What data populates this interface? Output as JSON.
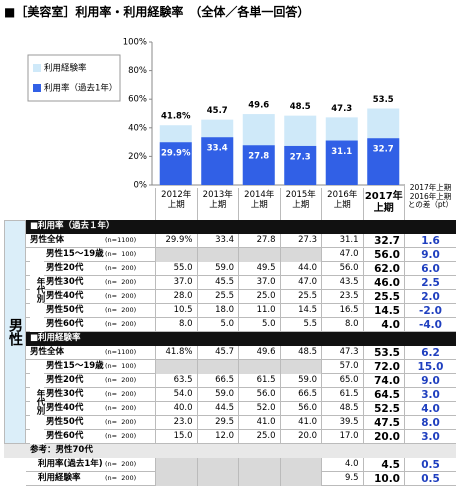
{
  "chart_data": {
    "type": "bar",
    "title": "■［美容室］利用率・利用経験率　（全体／各単一回答）",
    "categories": [
      "2012年\n上期",
      "2013年\n上期",
      "2014年\n上期",
      "2015年\n上期",
      "2016年\n上期",
      "2017年\n上期"
    ],
    "series": [
      {
        "name": "利用経験率",
        "color": "#cfe9f9",
        "values": [
          41.8,
          45.7,
          49.6,
          48.5,
          47.3,
          53.5
        ],
        "value_labels": [
          "41.8%",
          "45.7",
          "49.6",
          "48.5",
          "47.3",
          "53.5"
        ]
      },
      {
        "name": "利用率（過去1年）",
        "color": "#3160e6",
        "values": [
          29.9,
          33.4,
          27.8,
          27.3,
          31.1,
          32.7
        ],
        "value_labels": [
          "29.9%",
          "33.4",
          "27.8",
          "27.3",
          "31.1",
          "32.7"
        ]
      }
    ],
    "ylim": [
      0,
      100
    ],
    "yticks": [
      {
        "value": 0,
        "label": "0%"
      },
      {
        "value": 20,
        "label": "20%"
      },
      {
        "value": 40,
        "label": "40%"
      },
      {
        "value": 60,
        "label": "60%"
      },
      {
        "value": 80,
        "label": "80%"
      },
      {
        "value": 100,
        "label": "100%"
      }
    ],
    "grid": false
  },
  "table": {
    "diff_header": "2017年上期\n2016年上期\nとの差（pt）",
    "side_label": "男性",
    "age_label": "年代別",
    "sections": [
      {
        "title": "■利用率（過去１年）",
        "rows": [
          {
            "label": "男性全体",
            "n": "(n=1100)",
            "values": [
              "29.9%",
              "33.4",
              "27.8",
              "27.3",
              "31.1",
              "32.7"
            ],
            "diff": "1.6"
          },
          {
            "label": "男性15～19歳",
            "n": "(n=  100)",
            "values": [
              null,
              null,
              null,
              null,
              "47.0",
              "56.0"
            ],
            "diff": "9.0"
          },
          {
            "label": "男性20代",
            "n": "(n=  200)",
            "values": [
              "55.0",
              "59.0",
              "49.5",
              "44.0",
              "56.0",
              "62.0"
            ],
            "diff": "6.0"
          },
          {
            "label": "男性30代",
            "n": "(n=  200)",
            "values": [
              "37.0",
              "45.5",
              "37.0",
              "47.0",
              "43.5",
              "46.0"
            ],
            "diff": "2.5"
          },
          {
            "label": "男性40代",
            "n": "(n=  200)",
            "values": [
              "28.0",
              "25.5",
              "25.0",
              "25.5",
              "23.5",
              "25.5"
            ],
            "diff": "2.0"
          },
          {
            "label": "男性50代",
            "n": "(n=  200)",
            "values": [
              "10.5",
              "18.0",
              "11.0",
              "14.5",
              "16.5",
              "14.5"
            ],
            "diff": "-2.0"
          },
          {
            "label": "男性60代",
            "n": "(n=  200)",
            "values": [
              "8.0",
              "5.0",
              "5.0",
              "5.5",
              "8.0",
              "4.0"
            ],
            "diff": "-4.0"
          }
        ]
      },
      {
        "title": "■利用経験率",
        "rows": [
          {
            "label": "男性全体",
            "n": "(n=1100)",
            "values": [
              "41.8%",
              "45.7",
              "49.6",
              "48.5",
              "47.3",
              "53.5"
            ],
            "diff": "6.2"
          },
          {
            "label": "男性15～19歳",
            "n": "(n=  100)",
            "values": [
              null,
              null,
              null,
              null,
              "57.0",
              "72.0"
            ],
            "diff": "15.0"
          },
          {
            "label": "男性20代",
            "n": "(n=  200)",
            "values": [
              "63.5",
              "66.5",
              "61.5",
              "59.0",
              "65.0",
              "74.0"
            ],
            "diff": "9.0"
          },
          {
            "label": "男性30代",
            "n": "(n=  200)",
            "values": [
              "54.0",
              "59.0",
              "56.0",
              "66.5",
              "61.5",
              "64.5"
            ],
            "diff": "3.0"
          },
          {
            "label": "男性40代",
            "n": "(n=  200)",
            "values": [
              "40.0",
              "44.5",
              "52.0",
              "56.0",
              "48.5",
              "52.5"
            ],
            "diff": "4.0"
          },
          {
            "label": "男性50代",
            "n": "(n=  200)",
            "values": [
              "23.0",
              "29.5",
              "41.0",
              "41.0",
              "39.5",
              "47.5"
            ],
            "diff": "8.0"
          },
          {
            "label": "男性60代",
            "n": "(n=  200)",
            "values": [
              "15.0",
              "12.0",
              "25.0",
              "20.0",
              "17.0",
              "20.0"
            ],
            "diff": "3.0"
          }
        ]
      }
    ],
    "reference": {
      "title": "参考：男性70代",
      "rows": [
        {
          "label": "利用率(過去1年)",
          "n": "(n=  200)",
          "values": [
            null,
            null,
            null,
            null,
            "4.0",
            "4.5"
          ],
          "diff": "0.5"
        },
        {
          "label": "利用経験率",
          "n": "(n=  200)",
          "values": [
            null,
            null,
            null,
            null,
            "9.5",
            "10.0"
          ],
          "diff": "0.5"
        }
      ]
    }
  }
}
